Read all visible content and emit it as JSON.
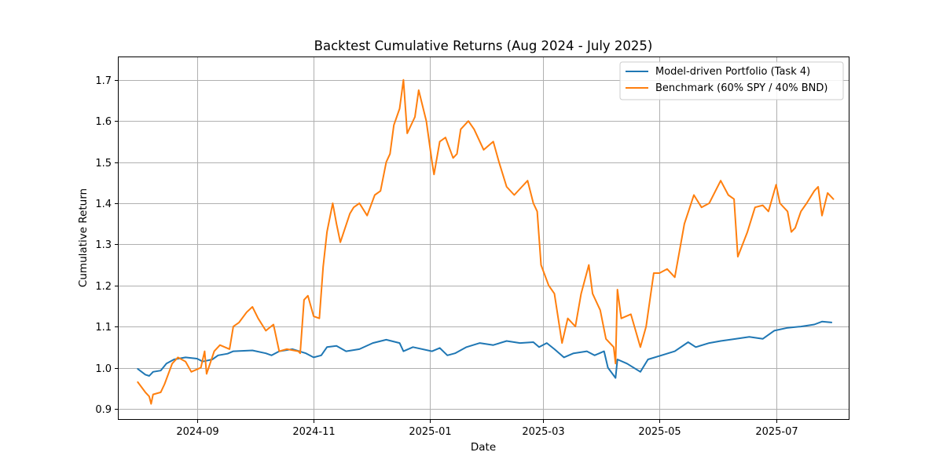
{
  "chart_data": {
    "type": "line",
    "title": "Backtest Cumulative Returns (Aug 2024 - July 2025)",
    "xlabel": "Date",
    "ylabel": "Cumulative Return",
    "xlim": [
      "2024-07-22",
      "2025-08-08"
    ],
    "ylim": [
      0.875,
      1.755
    ],
    "x_ticks": [
      {
        "date": "2024-09-01",
        "label": "2024-09"
      },
      {
        "date": "2024-11-01",
        "label": "2024-11"
      },
      {
        "date": "2025-01-01",
        "label": "2025-01"
      },
      {
        "date": "2025-03-01",
        "label": "2025-03"
      },
      {
        "date": "2025-05-01",
        "label": "2025-05"
      },
      {
        "date": "2025-07-01",
        "label": "2025-07"
      }
    ],
    "y_ticks": [
      {
        "value": 0.9,
        "label": "0.9"
      },
      {
        "value": 1.0,
        "label": "1.0"
      },
      {
        "value": 1.1,
        "label": "1.1"
      },
      {
        "value": 1.2,
        "label": "1.2"
      },
      {
        "value": 1.3,
        "label": "1.3"
      },
      {
        "value": 1.4,
        "label": "1.4"
      },
      {
        "value": 1.5,
        "label": "1.5"
      },
      {
        "value": 1.6,
        "label": "1.6"
      },
      {
        "value": 1.7,
        "label": "1.7"
      }
    ],
    "grid": true,
    "legend_position": "upper-right",
    "series": [
      {
        "name": "Model-driven Portfolio (Task 4)",
        "color": "#1f77b4",
        "points": [
          [
            "2024-08-01",
            0.997
          ],
          [
            "2024-08-05",
            0.983
          ],
          [
            "2024-08-07",
            0.98
          ],
          [
            "2024-08-09",
            0.99
          ],
          [
            "2024-08-13",
            0.993
          ],
          [
            "2024-08-16",
            1.01
          ],
          [
            "2024-08-20",
            1.02
          ],
          [
            "2024-08-26",
            1.025
          ],
          [
            "2024-09-01",
            1.022
          ],
          [
            "2024-09-04",
            1.015
          ],
          [
            "2024-09-09",
            1.02
          ],
          [
            "2024-09-12",
            1.03
          ],
          [
            "2024-09-17",
            1.034
          ],
          [
            "2024-09-20",
            1.04
          ],
          [
            "2024-09-30",
            1.042
          ],
          [
            "2024-10-07",
            1.035
          ],
          [
            "2024-10-10",
            1.03
          ],
          [
            "2024-10-14",
            1.04
          ],
          [
            "2024-10-21",
            1.045
          ],
          [
            "2024-10-28",
            1.035
          ],
          [
            "2024-11-01",
            1.025
          ],
          [
            "2024-11-05",
            1.03
          ],
          [
            "2024-11-08",
            1.05
          ],
          [
            "2024-11-13",
            1.053
          ],
          [
            "2024-11-18",
            1.04
          ],
          [
            "2024-11-25",
            1.045
          ],
          [
            "2024-12-02",
            1.06
          ],
          [
            "2024-12-09",
            1.068
          ],
          [
            "2024-12-16",
            1.06
          ],
          [
            "2024-12-18",
            1.04
          ],
          [
            "2024-12-23",
            1.05
          ],
          [
            "2025-01-02",
            1.04
          ],
          [
            "2025-01-06",
            1.048
          ],
          [
            "2025-01-10",
            1.03
          ],
          [
            "2025-01-14",
            1.035
          ],
          [
            "2025-01-20",
            1.05
          ],
          [
            "2025-01-27",
            1.06
          ],
          [
            "2025-02-03",
            1.055
          ],
          [
            "2025-02-10",
            1.065
          ],
          [
            "2025-02-17",
            1.06
          ],
          [
            "2025-02-24",
            1.062
          ],
          [
            "2025-02-27",
            1.05
          ],
          [
            "2025-03-03",
            1.06
          ],
          [
            "2025-03-07",
            1.045
          ],
          [
            "2025-03-12",
            1.025
          ],
          [
            "2025-03-17",
            1.035
          ],
          [
            "2025-03-24",
            1.04
          ],
          [
            "2025-03-28",
            1.03
          ],
          [
            "2025-04-02",
            1.04
          ],
          [
            "2025-04-04",
            1.0
          ],
          [
            "2025-04-08",
            0.975
          ],
          [
            "2025-04-09",
            1.02
          ],
          [
            "2025-04-14",
            1.01
          ],
          [
            "2025-04-21",
            0.99
          ],
          [
            "2025-04-25",
            1.02
          ],
          [
            "2025-05-02",
            1.03
          ],
          [
            "2025-05-09",
            1.04
          ],
          [
            "2025-05-16",
            1.062
          ],
          [
            "2025-05-20",
            1.05
          ],
          [
            "2025-05-27",
            1.06
          ],
          [
            "2025-06-02",
            1.065
          ],
          [
            "2025-06-10",
            1.07
          ],
          [
            "2025-06-17",
            1.075
          ],
          [
            "2025-06-24",
            1.07
          ],
          [
            "2025-06-30",
            1.09
          ],
          [
            "2025-07-07",
            1.097
          ],
          [
            "2025-07-14",
            1.1
          ],
          [
            "2025-07-21",
            1.105
          ],
          [
            "2025-07-25",
            1.112
          ],
          [
            "2025-07-30",
            1.11
          ]
        ]
      },
      {
        "name": "Benchmark (60% SPY / 40% BND)",
        "color": "#ff7f0e",
        "points": [
          [
            "2024-08-01",
            0.965
          ],
          [
            "2024-08-05",
            0.94
          ],
          [
            "2024-08-07",
            0.93
          ],
          [
            "2024-08-08",
            0.912
          ],
          [
            "2024-08-09",
            0.935
          ],
          [
            "2024-08-13",
            0.94
          ],
          [
            "2024-08-15",
            0.96
          ],
          [
            "2024-08-19",
            1.01
          ],
          [
            "2024-08-22",
            1.025
          ],
          [
            "2024-08-26",
            1.015
          ],
          [
            "2024-08-29",
            0.99
          ],
          [
            "2024-09-03",
            1.0
          ],
          [
            "2024-09-05",
            1.04
          ],
          [
            "2024-09-06",
            0.985
          ],
          [
            "2024-09-10",
            1.04
          ],
          [
            "2024-09-13",
            1.055
          ],
          [
            "2024-09-18",
            1.045
          ],
          [
            "2024-09-20",
            1.1
          ],
          [
            "2024-09-23",
            1.11
          ],
          [
            "2024-09-27",
            1.135
          ],
          [
            "2024-09-30",
            1.148
          ],
          [
            "2024-10-03",
            1.12
          ],
          [
            "2024-10-07",
            1.09
          ],
          [
            "2024-10-11",
            1.105
          ],
          [
            "2024-10-14",
            1.04
          ],
          [
            "2024-10-18",
            1.045
          ],
          [
            "2024-10-24",
            1.04
          ],
          [
            "2024-10-25",
            1.035
          ],
          [
            "2024-10-27",
            1.165
          ],
          [
            "2024-10-29",
            1.175
          ],
          [
            "2024-11-01",
            1.125
          ],
          [
            "2024-11-04",
            1.12
          ],
          [
            "2024-11-06",
            1.245
          ],
          [
            "2024-11-08",
            1.33
          ],
          [
            "2024-11-11",
            1.4
          ],
          [
            "2024-11-13",
            1.35
          ],
          [
            "2024-11-15",
            1.305
          ],
          [
            "2024-11-20",
            1.375
          ],
          [
            "2024-11-22",
            1.39
          ],
          [
            "2024-11-25",
            1.4
          ],
          [
            "2024-11-29",
            1.37
          ],
          [
            "2024-12-03",
            1.42
          ],
          [
            "2024-12-06",
            1.43
          ],
          [
            "2024-12-09",
            1.5
          ],
          [
            "2024-12-11",
            1.52
          ],
          [
            "2024-12-13",
            1.59
          ],
          [
            "2024-12-16",
            1.63
          ],
          [
            "2024-12-18",
            1.7
          ],
          [
            "2024-12-20",
            1.57
          ],
          [
            "2024-12-24",
            1.61
          ],
          [
            "2024-12-26",
            1.675
          ],
          [
            "2024-12-30",
            1.6
          ],
          [
            "2025-01-02",
            1.5
          ],
          [
            "2025-01-03",
            1.47
          ],
          [
            "2025-01-06",
            1.55
          ],
          [
            "2025-01-09",
            1.56
          ],
          [
            "2025-01-13",
            1.51
          ],
          [
            "2025-01-15",
            1.52
          ],
          [
            "2025-01-17",
            1.58
          ],
          [
            "2025-01-21",
            1.6
          ],
          [
            "2025-01-24",
            1.58
          ],
          [
            "2025-01-29",
            1.53
          ],
          [
            "2025-02-03",
            1.55
          ],
          [
            "2025-02-06",
            1.5
          ],
          [
            "2025-02-10",
            1.44
          ],
          [
            "2025-02-14",
            1.42
          ],
          [
            "2025-02-18",
            1.44
          ],
          [
            "2025-02-21",
            1.455
          ],
          [
            "2025-02-24",
            1.4
          ],
          [
            "2025-02-26",
            1.38
          ],
          [
            "2025-02-28",
            1.25
          ],
          [
            "2025-03-04",
            1.2
          ],
          [
            "2025-03-07",
            1.18
          ],
          [
            "2025-03-11",
            1.06
          ],
          [
            "2025-03-14",
            1.12
          ],
          [
            "2025-03-18",
            1.1
          ],
          [
            "2025-03-21",
            1.18
          ],
          [
            "2025-03-25",
            1.25
          ],
          [
            "2025-03-27",
            1.18
          ],
          [
            "2025-03-31",
            1.14
          ],
          [
            "2025-04-03",
            1.07
          ],
          [
            "2025-04-07",
            1.05
          ],
          [
            "2025-04-08",
            1.01
          ],
          [
            "2025-04-09",
            1.19
          ],
          [
            "2025-04-11",
            1.12
          ],
          [
            "2025-04-16",
            1.13
          ],
          [
            "2025-04-21",
            1.05
          ],
          [
            "2025-04-24",
            1.1
          ],
          [
            "2025-04-28",
            1.23
          ],
          [
            "2025-05-01",
            1.23
          ],
          [
            "2025-05-05",
            1.24
          ],
          [
            "2025-05-09",
            1.22
          ],
          [
            "2025-05-14",
            1.35
          ],
          [
            "2025-05-19",
            1.42
          ],
          [
            "2025-05-23",
            1.39
          ],
          [
            "2025-05-27",
            1.4
          ],
          [
            "2025-06-02",
            1.455
          ],
          [
            "2025-06-06",
            1.42
          ],
          [
            "2025-06-09",
            1.41
          ],
          [
            "2025-06-11",
            1.27
          ],
          [
            "2025-06-16",
            1.33
          ],
          [
            "2025-06-20",
            1.39
          ],
          [
            "2025-06-24",
            1.395
          ],
          [
            "2025-06-27",
            1.38
          ],
          [
            "2025-07-01",
            1.445
          ],
          [
            "2025-07-03",
            1.4
          ],
          [
            "2025-07-07",
            1.38
          ],
          [
            "2025-07-09",
            1.33
          ],
          [
            "2025-07-11",
            1.34
          ],
          [
            "2025-07-14",
            1.38
          ],
          [
            "2025-07-17",
            1.4
          ],
          [
            "2025-07-21",
            1.43
          ],
          [
            "2025-07-23",
            1.44
          ],
          [
            "2025-07-25",
            1.37
          ],
          [
            "2025-07-28",
            1.425
          ],
          [
            "2025-07-31",
            1.41
          ]
        ]
      }
    ]
  }
}
